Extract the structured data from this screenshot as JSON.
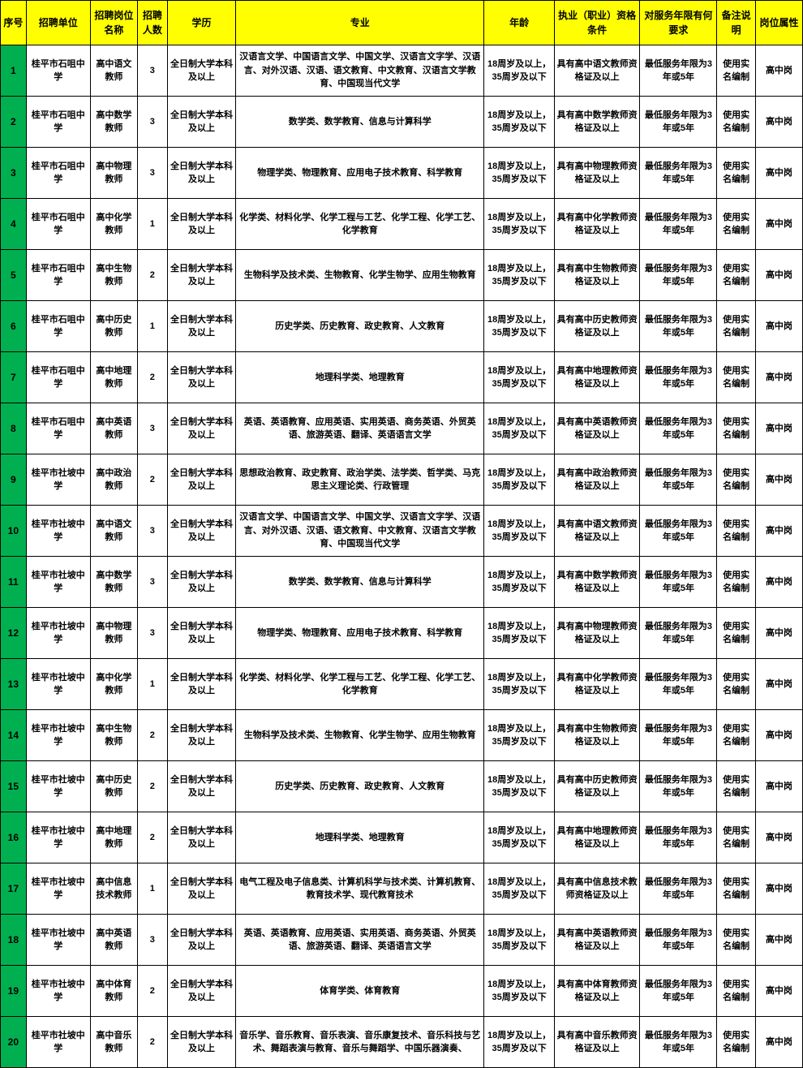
{
  "headers": [
    "序号",
    "招聘单位",
    "招聘岗位名称",
    "招聘人数",
    "学历",
    "专业",
    "年龄",
    "执业（职业）资格条件",
    "对服务年限有何要求",
    "备注说明",
    "岗位属性"
  ],
  "rows": [
    {
      "seq": "1",
      "unit": "桂平市石咀中学",
      "post": "高中语文教师",
      "num": "3",
      "edu": "全日制大学本科及以上",
      "major": "汉语言文学、中国语言文学、中国文学、汉语言文字学、汉语言、对外汉语、汉语、语文教育、中文教育、汉语言文学教育、中国现当代文学",
      "age": "18周岁及以上，35周岁及以下",
      "qual": "具有高中语文教师资格证及以上",
      "serv": "最低服务年限为3年或5年",
      "note": "使用实名编制",
      "attr": "高中岗"
    },
    {
      "seq": "2",
      "unit": "桂平市石咀中学",
      "post": "高中数学教师",
      "num": "3",
      "edu": "全日制大学本科及以上",
      "major": "数学类、数学教育、信息与计算科学",
      "age": "18周岁及以上，35周岁及以下",
      "qual": "具有高中数学教师资格证及以上",
      "serv": "最低服务年限为3年或5年",
      "note": "使用实名编制",
      "attr": "高中岗"
    },
    {
      "seq": "3",
      "unit": "桂平市石咀中学",
      "post": "高中物理教师",
      "num": "3",
      "edu": "全日制大学本科及以上",
      "major": "物理学类、物理教育、应用电子技术教育、科学教育",
      "age": "18周岁及以上，35周岁及以下",
      "qual": "具有高中物理教师资格证及以上",
      "serv": "最低服务年限为3年或5年",
      "note": "使用实名编制",
      "attr": "高中岗"
    },
    {
      "seq": "4",
      "unit": "桂平市石咀中学",
      "post": "高中化学教师",
      "num": "1",
      "edu": "全日制大学本科及以上",
      "major": "化学类、材料化学、化学工程与工艺、化学工程、化学工艺、化学教育",
      "age": "18周岁及以上，35周岁及以下",
      "qual": "具有高中化学教师资格证及以上",
      "serv": "最低服务年限为3年或5年",
      "note": "使用实名编制",
      "attr": "高中岗"
    },
    {
      "seq": "5",
      "unit": "桂平市石咀中学",
      "post": "高中生物教师",
      "num": "2",
      "edu": "全日制大学本科及以上",
      "major": "生物科学及技术类、生物教育、化学生物学、应用生物教育",
      "age": "18周岁及以上，35周岁及以下",
      "qual": "具有高中生物教师资格证及以上",
      "serv": "最低服务年限为3年或5年",
      "note": "使用实名编制",
      "attr": "高中岗"
    },
    {
      "seq": "6",
      "unit": "桂平市石咀中学",
      "post": "高中历史教师",
      "num": "1",
      "edu": "全日制大学本科及以上",
      "major": "历史学类、历史教育、政史教育、人文教育",
      "age": "18周岁及以上，35周岁及以下",
      "qual": "具有高中历史教师资格证及以上",
      "serv": "最低服务年限为3年或5年",
      "note": "使用实名编制",
      "attr": "高中岗"
    },
    {
      "seq": "7",
      "unit": "桂平市石咀中学",
      "post": "高中地理教师",
      "num": "2",
      "edu": "全日制大学本科及以上",
      "major": "地理科学类、地理教育",
      "age": "18周岁及以上，35周岁及以下",
      "qual": "具有高中地理教师资格证及以上",
      "serv": "最低服务年限为3年或5年",
      "note": "使用实名编制",
      "attr": "高中岗"
    },
    {
      "seq": "8",
      "unit": "桂平市石咀中学",
      "post": "高中英语教师",
      "num": "3",
      "edu": "全日制大学本科及以上",
      "major": "英语、英语教育、应用英语、实用英语、商务英语、外贸英语、旅游英语、翻译、英语语言文学",
      "age": "18周岁及以上，35周岁及以下",
      "qual": "具有高中英语教师资格证及以上",
      "serv": "最低服务年限为3年或5年",
      "note": "使用实名编制",
      "attr": "高中岗"
    },
    {
      "seq": "9",
      "unit": "桂平市社坡中学",
      "post": "高中政治教师",
      "num": "2",
      "edu": "全日制大学本科及以上",
      "major": "思想政治教育、政史教育、政治学类、法学类、哲学类、马克思主义理论类、行政管理",
      "age": "18周岁及以上，35周岁及以下",
      "qual": "具有高中政治教师资格证及以上",
      "serv": "最低服务年限为3年或5年",
      "note": "使用实名编制",
      "attr": "高中岗"
    },
    {
      "seq": "10",
      "unit": "桂平市社坡中学",
      "post": "高中语文教师",
      "num": "3",
      "edu": "全日制大学本科及以上",
      "major": "汉语言文学、中国语言文学、中国文学、汉语言文字学、汉语言、对外汉语、汉语、语文教育、中文教育、汉语言文学教育、中国现当代文学",
      "age": "18周岁及以上，35周岁及以下",
      "qual": "具有高中语文教师资格证及以上",
      "serv": "最低服务年限为3年或5年",
      "note": "使用实名编制",
      "attr": "高中岗"
    },
    {
      "seq": "11",
      "unit": "桂平市社坡中学",
      "post": "高中数学教师",
      "num": "3",
      "edu": "全日制大学本科及以上",
      "major": "数学类、数学教育、信息与计算科学",
      "age": "18周岁及以上，35周岁及以下",
      "qual": "具有高中数学教师资格证及以上",
      "serv": "最低服务年限为3年或5年",
      "note": "使用实名编制",
      "attr": "高中岗"
    },
    {
      "seq": "12",
      "unit": "桂平市社坡中学",
      "post": "高中物理教师",
      "num": "3",
      "edu": "全日制大学本科及以上",
      "major": "物理学类、物理教育、应用电子技术教育、科学教育",
      "age": "18周岁及以上，35周岁及以下",
      "qual": "具有高中物理教师资格证及以上",
      "serv": "最低服务年限为3年或5年",
      "note": "使用实名编制",
      "attr": "高中岗"
    },
    {
      "seq": "13",
      "unit": "桂平市社坡中学",
      "post": "高中化学教师",
      "num": "1",
      "edu": "全日制大学本科及以上",
      "major": "化学类、材料化学、化学工程与工艺、化学工程、化学工艺、化学教育",
      "age": "18周岁及以上，35周岁及以下",
      "qual": "具有高中化学教师资格证及以上",
      "serv": "最低服务年限为3年或5年",
      "note": "使用实名编制",
      "attr": "高中岗"
    },
    {
      "seq": "14",
      "unit": "桂平市社坡中学",
      "post": "高中生物教师",
      "num": "2",
      "edu": "全日制大学本科及以上",
      "major": "生物科学及技术类、生物教育、化学生物学、应用生物教育",
      "age": "18周岁及以上，35周岁及以下",
      "qual": "具有高中生物教师资格证及以上",
      "serv": "最低服务年限为3年或5年",
      "note": "使用实名编制",
      "attr": "高中岗"
    },
    {
      "seq": "15",
      "unit": "桂平市社坡中学",
      "post": "高中历史教师",
      "num": "2",
      "edu": "全日制大学本科及以上",
      "major": "历史学类、历史教育、政史教育、人文教育",
      "age": "18周岁及以上，35周岁及以下",
      "qual": "具有高中历史教师资格证及以上",
      "serv": "最低服务年限为3年或5年",
      "note": "使用实名编制",
      "attr": "高中岗"
    },
    {
      "seq": "16",
      "unit": "桂平市社坡中学",
      "post": "高中地理教师",
      "num": "2",
      "edu": "全日制大学本科及以上",
      "major": "地理科学类、地理教育",
      "age": "18周岁及以上，35周岁及以下",
      "qual": "具有高中地理教师资格证及以上",
      "serv": "最低服务年限为3年或5年",
      "note": "使用实名编制",
      "attr": "高中岗"
    },
    {
      "seq": "17",
      "unit": "桂平市社坡中学",
      "post": "高中信息技术教师",
      "num": "1",
      "edu": "全日制大学本科及以上",
      "major": "电气工程及电子信息类、计算机科学与技术类、计算机教育、教育技术学、现代教育技术",
      "age": "18周岁及以上，35周岁及以下",
      "qual": "具有高中信息技术教师资格证及以上",
      "serv": "最低服务年限为3年或5年",
      "note": "使用实名编制",
      "attr": "高中岗"
    },
    {
      "seq": "18",
      "unit": "桂平市社坡中学",
      "post": "高中英语教师",
      "num": "3",
      "edu": "全日制大学本科及以上",
      "major": "英语、英语教育、应用英语、实用英语、商务英语、外贸英语、旅游英语、翻译、英语语言文学",
      "age": "18周岁及以上，35周岁及以下",
      "qual": "具有高中英语教师资格证及以上",
      "serv": "最低服务年限为3年或5年",
      "note": "使用实名编制",
      "attr": "高中岗"
    },
    {
      "seq": "19",
      "unit": "桂平市社坡中学",
      "post": "高中体育教师",
      "num": "2",
      "edu": "全日制大学本科及以上",
      "major": "体育学类、体育教育",
      "age": "18周岁及以上，35周岁及以下",
      "qual": "具有高中体育教师资格证及以上",
      "serv": "最低服务年限为3年或5年",
      "note": "使用实名编制",
      "attr": "高中岗"
    },
    {
      "seq": "20",
      "unit": "桂平市社坡中学",
      "post": "高中音乐教师",
      "num": "2",
      "edu": "全日制大学本科及以上",
      "major": "音乐学、音乐教育、音乐表演、音乐康复技术、音乐科技与艺术、舞蹈表演与教育、音乐与舞蹈学、中国乐器演奏、",
      "age": "18周岁及以上，35周岁及以下",
      "qual": "具有高中音乐教师资格证及以上",
      "serv": "最低服务年限为3年或5年",
      "note": "使用实名编制",
      "attr": "高中岗"
    }
  ]
}
